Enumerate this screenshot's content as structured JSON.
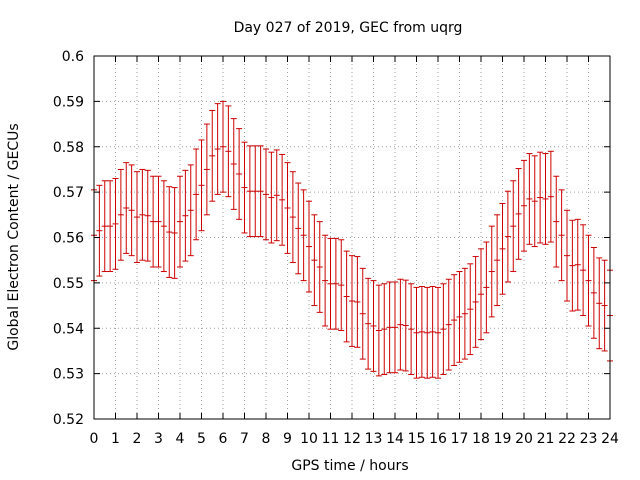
{
  "chart_data": {
    "type": "errorbar",
    "title": "Day 027 of 2019, GEC from uqrg",
    "xlabel": "GPS time / hours",
    "ylabel": "Global Electron Content / GECUs",
    "xlim": [
      0,
      24
    ],
    "ylim": [
      0.52,
      0.6
    ],
    "xticks": [
      "0",
      "1",
      "2",
      "3",
      "4",
      "5",
      "6",
      "7",
      "8",
      "9",
      "10",
      "11",
      "12",
      "13",
      "14",
      "15",
      "16",
      "17",
      "18",
      "19",
      "20",
      "21",
      "22",
      "23",
      "24"
    ],
    "yticks": [
      "0.52",
      "0.53",
      "0.54",
      "0.55",
      "0.56",
      "0.57",
      "0.58",
      "0.59",
      "0.6"
    ],
    "grid": true,
    "color": "#cc0000",
    "series": [
      {
        "name": "GEC",
        "x": [
          0,
          0.25,
          0.5,
          0.75,
          1,
          1.25,
          1.5,
          1.75,
          2,
          2.25,
          2.5,
          2.75,
          3,
          3.25,
          3.5,
          3.75,
          4,
          4.25,
          4.5,
          4.75,
          5,
          5.25,
          5.5,
          5.75,
          6,
          6.25,
          6.5,
          6.75,
          7,
          7.25,
          7.5,
          7.75,
          8,
          8.25,
          8.5,
          8.75,
          9,
          9.25,
          9.5,
          9.75,
          10,
          10.25,
          10.5,
          10.75,
          11,
          11.25,
          11.5,
          11.75,
          12,
          12.25,
          12.5,
          12.75,
          13,
          13.25,
          13.5,
          13.75,
          14,
          14.25,
          14.5,
          14.75,
          15,
          15.25,
          15.5,
          15.75,
          16,
          16.25,
          16.5,
          16.75,
          17,
          17.25,
          17.5,
          17.75,
          18,
          18.25,
          18.5,
          18.75,
          19,
          19.25,
          19.5,
          19.75,
          20,
          20.25,
          20.5,
          20.75,
          21,
          21.25,
          21.5,
          21.75,
          22,
          22.25,
          22.5,
          22.75,
          23,
          23.25,
          23.5,
          23.75,
          24
        ],
        "y": [
          0.5605,
          0.5615,
          0.5625,
          0.5625,
          0.563,
          0.565,
          0.5665,
          0.566,
          0.5645,
          0.565,
          0.5648,
          0.5635,
          0.5635,
          0.5625,
          0.5612,
          0.561,
          0.5635,
          0.5648,
          0.566,
          0.5695,
          0.5715,
          0.575,
          0.578,
          0.5795,
          0.58,
          0.579,
          0.5762,
          0.574,
          0.571,
          0.5702,
          0.5702,
          0.5702,
          0.5695,
          0.5688,
          0.5693,
          0.5683,
          0.5665,
          0.5645,
          0.562,
          0.5605,
          0.558,
          0.555,
          0.5535,
          0.5505,
          0.5498,
          0.5498,
          0.5495,
          0.547,
          0.546,
          0.5458,
          0.5432,
          0.541,
          0.5405,
          0.5395,
          0.5398,
          0.5402,
          0.5402,
          0.5408,
          0.5406,
          0.5398,
          0.539,
          0.5392,
          0.539,
          0.5392,
          0.539,
          0.5398,
          0.5408,
          0.5418,
          0.5425,
          0.5432,
          0.5442,
          0.5458,
          0.5475,
          0.549,
          0.5525,
          0.555,
          0.5575,
          0.5602,
          0.5625,
          0.5652,
          0.567,
          0.5685,
          0.568,
          0.5688,
          0.5685,
          0.569,
          0.5635,
          0.5605,
          0.556,
          0.5538,
          0.554,
          0.5528,
          0.5505,
          0.5478,
          0.5455,
          0.545,
          0.5428
        ],
        "err": 0.01
      }
    ]
  }
}
